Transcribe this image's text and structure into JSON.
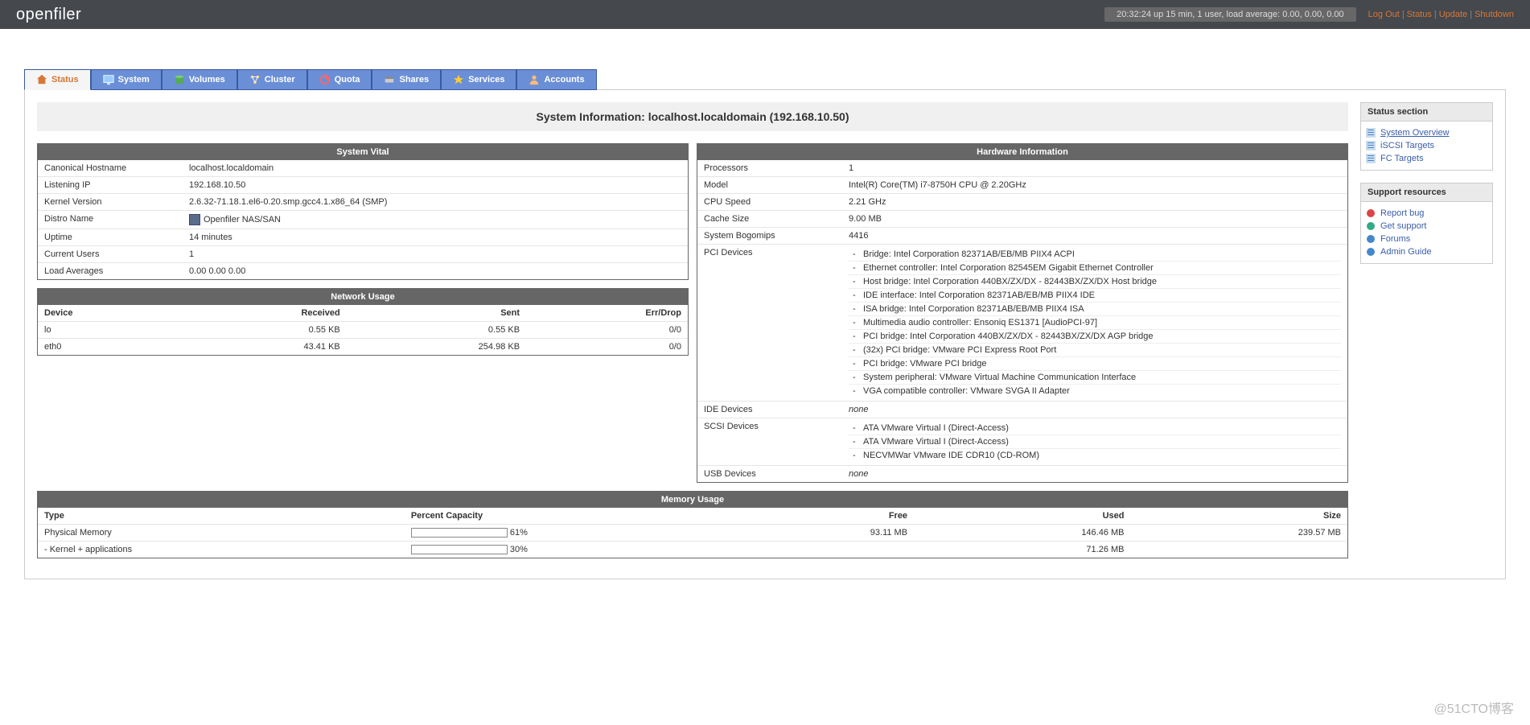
{
  "brand": "openfiler",
  "statusbar": "20:32:24 up 15 min, 1 user, load average: 0.00, 0.00, 0.00",
  "toplinks": {
    "logout": "Log Out",
    "status": "Status",
    "update": "Update",
    "shutdown": "Shutdown"
  },
  "tabs": {
    "status": "Status",
    "system": "System",
    "volumes": "Volumes",
    "cluster": "Cluster",
    "quota": "Quota",
    "shares": "Shares",
    "services": "Services",
    "accounts": "Accounts"
  },
  "page_title": "System Information: localhost.localdomain (192.168.10.50)",
  "vital": {
    "title": "System Vital",
    "rows": {
      "hostname_label": "Canonical Hostname",
      "hostname": "localhost.localdomain",
      "ip_label": "Listening IP",
      "ip": "192.168.10.50",
      "kernel_label": "Kernel Version",
      "kernel": "2.6.32-71.18.1.el6-0.20.smp.gcc4.1.x86_64 (SMP)",
      "distro_label": "Distro Name",
      "distro": "Openfiler NAS/SAN",
      "uptime_label": "Uptime",
      "uptime": "14 minutes",
      "users_label": "Current Users",
      "users": "1",
      "load_label": "Load Averages",
      "load": "0.00 0.00 0.00"
    }
  },
  "network": {
    "title": "Network Usage",
    "headers": {
      "device": "Device",
      "received": "Received",
      "sent": "Sent",
      "errdrop": "Err/Drop"
    },
    "rows": [
      {
        "device": "lo",
        "received": "0.55 KB",
        "sent": "0.55 KB",
        "errdrop": "0/0"
      },
      {
        "device": "eth0",
        "received": "43.41 KB",
        "sent": "254.98 KB",
        "errdrop": "0/0"
      }
    ]
  },
  "hardware": {
    "title": "Hardware Information",
    "rows": {
      "proc_label": "Processors",
      "proc": "1",
      "model_label": "Model",
      "model": "Intel(R) Core(TM) i7-8750H CPU @ 2.20GHz",
      "speed_label": "CPU Speed",
      "speed": "2.21 GHz",
      "cache_label": "Cache Size",
      "cache": "9.00 MB",
      "bogo_label": "System Bogomips",
      "bogo": "4416",
      "pci_label": "PCI Devices",
      "ide_label": "IDE Devices",
      "ide": "none",
      "scsi_label": "SCSI Devices",
      "usb_label": "USB Devices",
      "usb": "none"
    },
    "pci": [
      "Bridge: Intel Corporation 82371AB/EB/MB PIIX4 ACPI",
      "Ethernet controller: Intel Corporation 82545EM Gigabit Ethernet Controller",
      "Host bridge: Intel Corporation 440BX/ZX/DX - 82443BX/ZX/DX Host bridge",
      "IDE interface: Intel Corporation 82371AB/EB/MB PIIX4 IDE",
      "ISA bridge: Intel Corporation 82371AB/EB/MB PIIX4 ISA",
      "Multimedia audio controller: Ensoniq ES1371 [AudioPCI-97]",
      "PCI bridge: Intel Corporation 440BX/ZX/DX - 82443BX/ZX/DX AGP bridge",
      "(32x) PCI bridge: VMware PCI Express Root Port",
      "PCI bridge: VMware PCI bridge",
      "System peripheral: VMware Virtual Machine Communication Interface",
      "VGA compatible controller: VMware SVGA II Adapter"
    ],
    "scsi": [
      "ATA VMware Virtual I (Direct-Access)",
      "ATA VMware Virtual I (Direct-Access)",
      "NECVMWar VMware IDE CDR10 (CD-ROM)"
    ]
  },
  "memory": {
    "title": "Memory Usage",
    "headers": {
      "type": "Type",
      "percent": "Percent Capacity",
      "free": "Free",
      "used": "Used",
      "size": "Size"
    },
    "rows": [
      {
        "type": "Physical Memory",
        "pct": 61,
        "pct_label": "61%",
        "free": "93.11 MB",
        "used": "146.46 MB",
        "size": "239.57 MB"
      },
      {
        "type": "- Kernel + applications",
        "pct": 30,
        "pct_label": "30%",
        "free": "",
        "used": "71.26 MB",
        "size": ""
      }
    ]
  },
  "sidebar": {
    "status_title": "Status section",
    "items": [
      {
        "label": "System Overview",
        "active": true
      },
      {
        "label": "iSCSI Targets",
        "active": false
      },
      {
        "label": "FC Targets",
        "active": false
      }
    ],
    "support_title": "Support resources",
    "support": [
      {
        "label": "Report bug",
        "color": "#d44"
      },
      {
        "label": "Get support",
        "color": "#3a8"
      },
      {
        "label": "Forums",
        "color": "#48c"
      },
      {
        "label": "Admin Guide",
        "color": "#48c"
      }
    ]
  },
  "watermark": "@51CTO博客"
}
